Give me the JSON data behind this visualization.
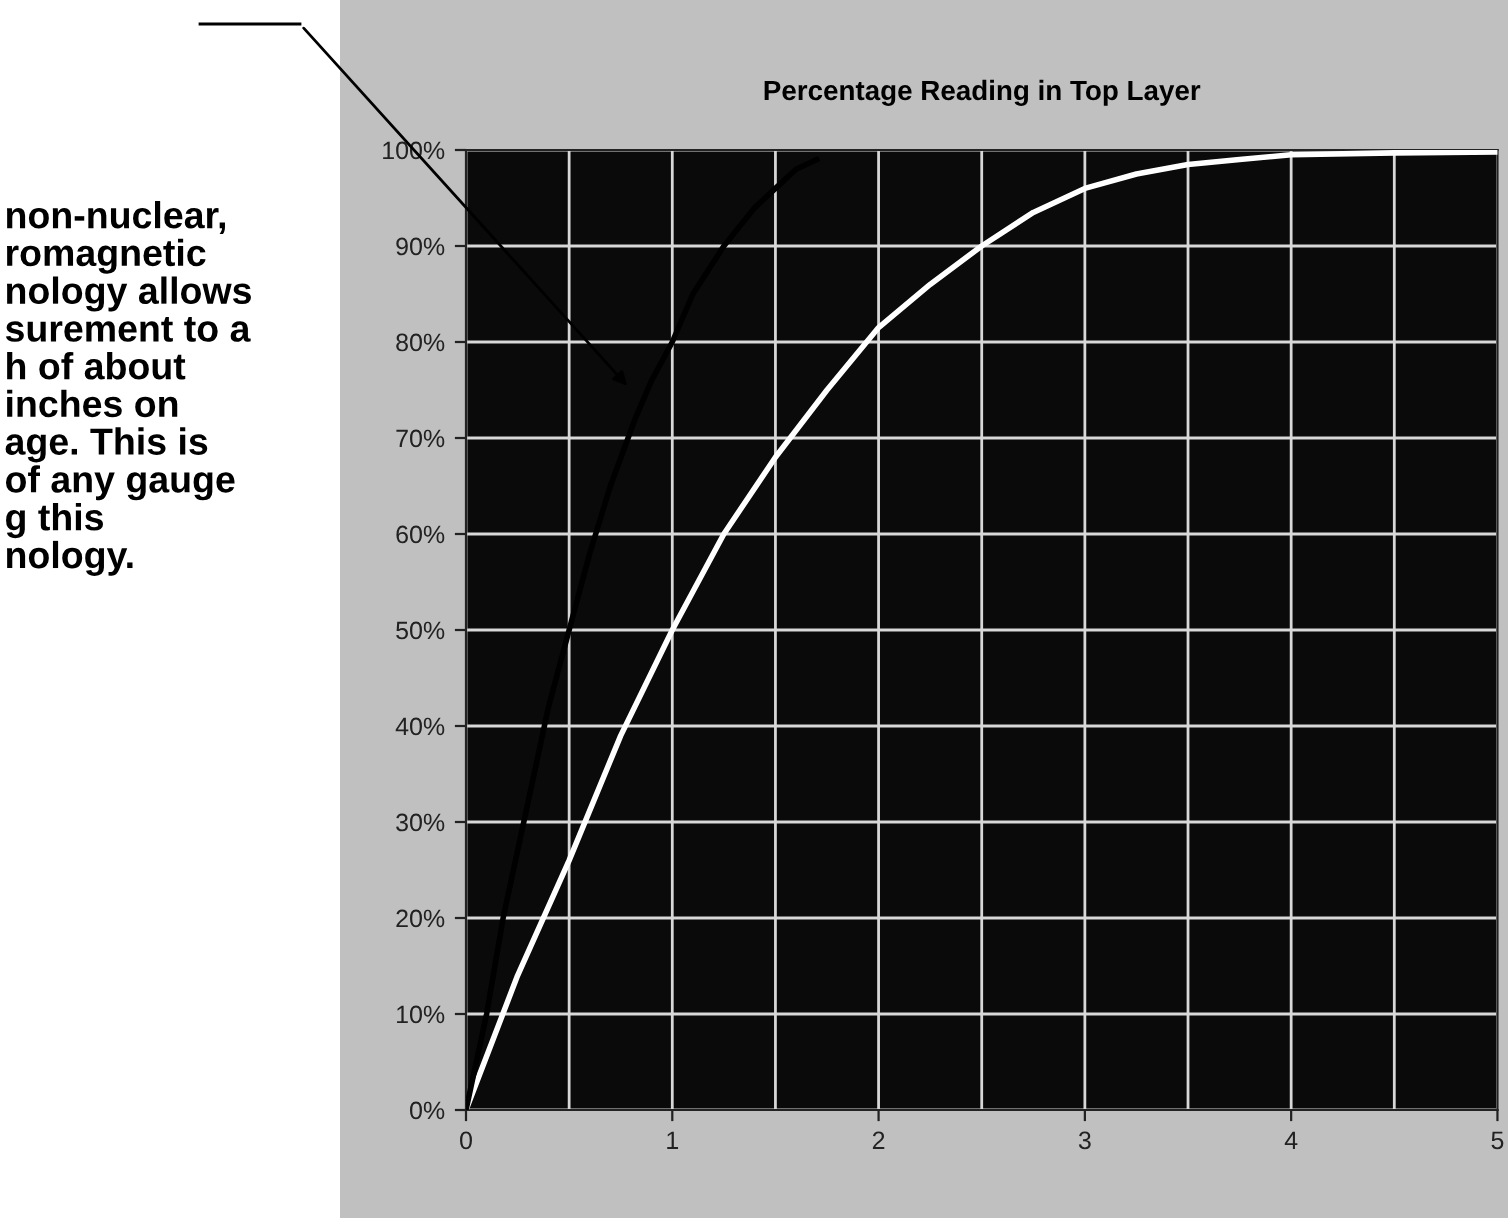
{
  "chart_data": {
    "type": "line",
    "title": "Percentage Reading in Top Layer",
    "annotations": [
      "non-nuclear,\nromagnetic\nnology allows\nsurement to a\nh of about\ninches on\nage. This is\nof any gauge\ng this\nnology."
    ],
    "series": [
      {
        "color": "#ffffff",
        "x": [
          0,
          0.25,
          0.5,
          0.75,
          1,
          1.25,
          1.5,
          1.75,
          2,
          2.25,
          2.5,
          2.75,
          3,
          3.25,
          3.5,
          3.75,
          4,
          4.5,
          5
        ],
        "values": [
          0,
          14,
          26,
          39,
          50,
          60,
          68,
          75,
          81.5,
          86,
          90,
          93.5,
          96,
          97.5,
          98.5,
          99,
          99.5,
          99.7,
          99.8
        ]
      },
      {
        "color": "#000000",
        "x": [
          0,
          0.1,
          0.18,
          0.3,
          0.4,
          0.5,
          0.6,
          0.7,
          0.82,
          0.9,
          1,
          1.1,
          1.25,
          1.4,
          1.5,
          1.6,
          1.7
        ],
        "values": [
          0,
          10,
          20,
          32,
          42,
          50,
          58,
          65,
          72,
          76,
          80,
          85,
          90,
          94,
          96,
          98,
          99
        ]
      }
    ],
    "xlim": [
      0,
      5
    ],
    "xticks": [
      0,
      1,
      2,
      3,
      4,
      5
    ],
    "ylim": [
      0,
      100
    ],
    "yticks": [
      {
        "value": 0,
        "label": "0%"
      },
      {
        "value": 10,
        "label": "10%"
      },
      {
        "value": 20,
        "label": "20%"
      },
      {
        "value": 30,
        "label": "30%"
      },
      {
        "value": 40,
        "label": "40%"
      },
      {
        "value": 50,
        "label": "50%"
      },
      {
        "value": 60,
        "label": "60%"
      },
      {
        "value": 70,
        "label": "70%"
      },
      {
        "value": 80,
        "label": "80%"
      },
      {
        "value": 90,
        "label": "90%"
      },
      {
        "value": 100,
        "label": "100%"
      }
    ],
    "grid": true,
    "legend": false
  }
}
